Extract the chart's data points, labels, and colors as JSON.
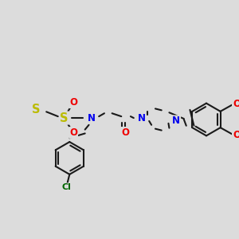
{
  "background_color": "#dcdcdc",
  "bond_color": "#1a1a1a",
  "bond_width": 1.5,
  "atom_colors": {
    "N": "#0000ee",
    "O": "#ee0000",
    "S": "#bbbb00",
    "Cl": "#006600",
    "C": "#1a1a1a"
  },
  "font_size": 8.5
}
